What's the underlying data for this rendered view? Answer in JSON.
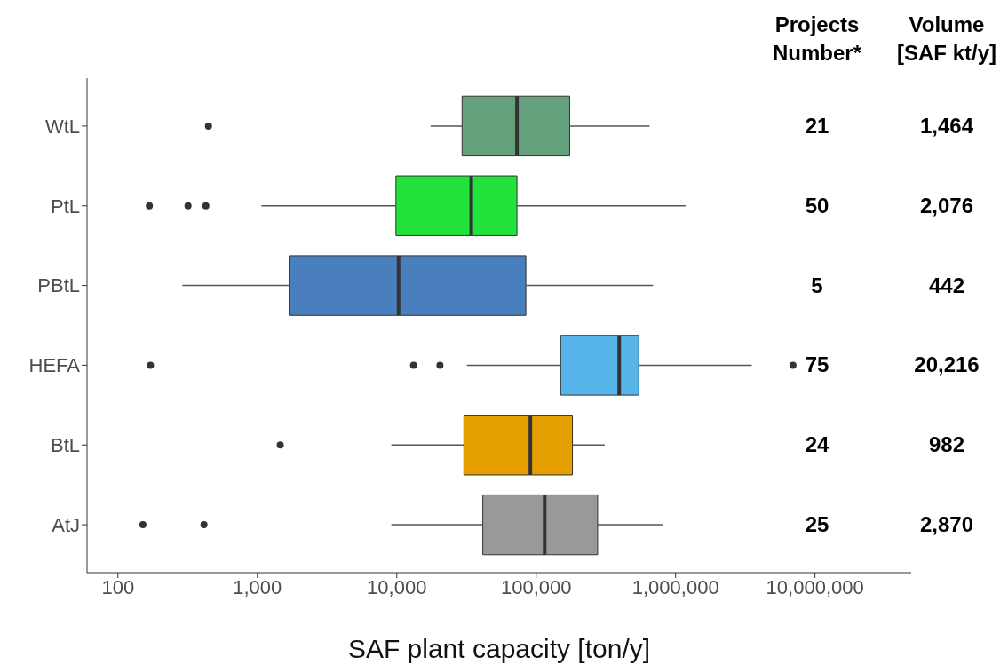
{
  "chart_data": {
    "type": "box",
    "orientation": "horizontal",
    "log": "x",
    "xlabel": "SAF plant capacity [ton/y]",
    "categories": [
      "WtL",
      "PtL",
      "PBtL",
      "HEFA",
      "BtL",
      "AtJ"
    ],
    "colors": [
      "#66a17d",
      "#22e33c",
      "#4a7fbd",
      "#56b4e9",
      "#e69f00",
      "#999999"
    ],
    "boxes": [
      {
        "low": 17500,
        "q1": 29400,
        "median": 72800,
        "q3": 174000,
        "high": 651000,
        "outliers": [
          446
        ]
      },
      {
        "low": 1070,
        "q1": 9860,
        "median": 34200,
        "q3": 72800,
        "high": 1180000,
        "outliers": [
          168,
          318,
          427
        ]
      },
      {
        "low": 290,
        "q1": 1690,
        "median": 10300,
        "q3": 84300,
        "high": 690000
      },
      {
        "low": 31800,
        "q1": 150000,
        "median": 394000,
        "q3": 545000,
        "high": 3520000,
        "outliers": [
          171,
          13200,
          20400,
          6950000
        ]
      },
      {
        "low": 9140,
        "q1": 30300,
        "median": 90800,
        "q3": 182000,
        "high": 310000,
        "outliers": [
          1460
        ]
      },
      {
        "low": 9140,
        "q1": 41400,
        "median": 115000,
        "q3": 276000,
        "high": 813000,
        "outliers": [
          151,
          414
        ]
      }
    ],
    "xlim": [
      60,
      49000000
    ],
    "xticks": [
      100,
      {
        "value": 1000,
        "label": "1,000"
      },
      {
        "value": 10000,
        "label": "10,000"
      },
      {
        "value": 100000,
        "label": "100,000"
      },
      {
        "value": 1000000,
        "label": "1,000,000"
      },
      {
        "value": 10000000,
        "label": "10,000,000"
      }
    ],
    "annotations": [
      "Projects Number*",
      "Volume [SAF kt/y]",
      "21",
      "1,464",
      "50",
      "2,076",
      "5",
      "442",
      "75",
      "20,216",
      "24",
      "982",
      "25",
      "2,870"
    ]
  }
}
